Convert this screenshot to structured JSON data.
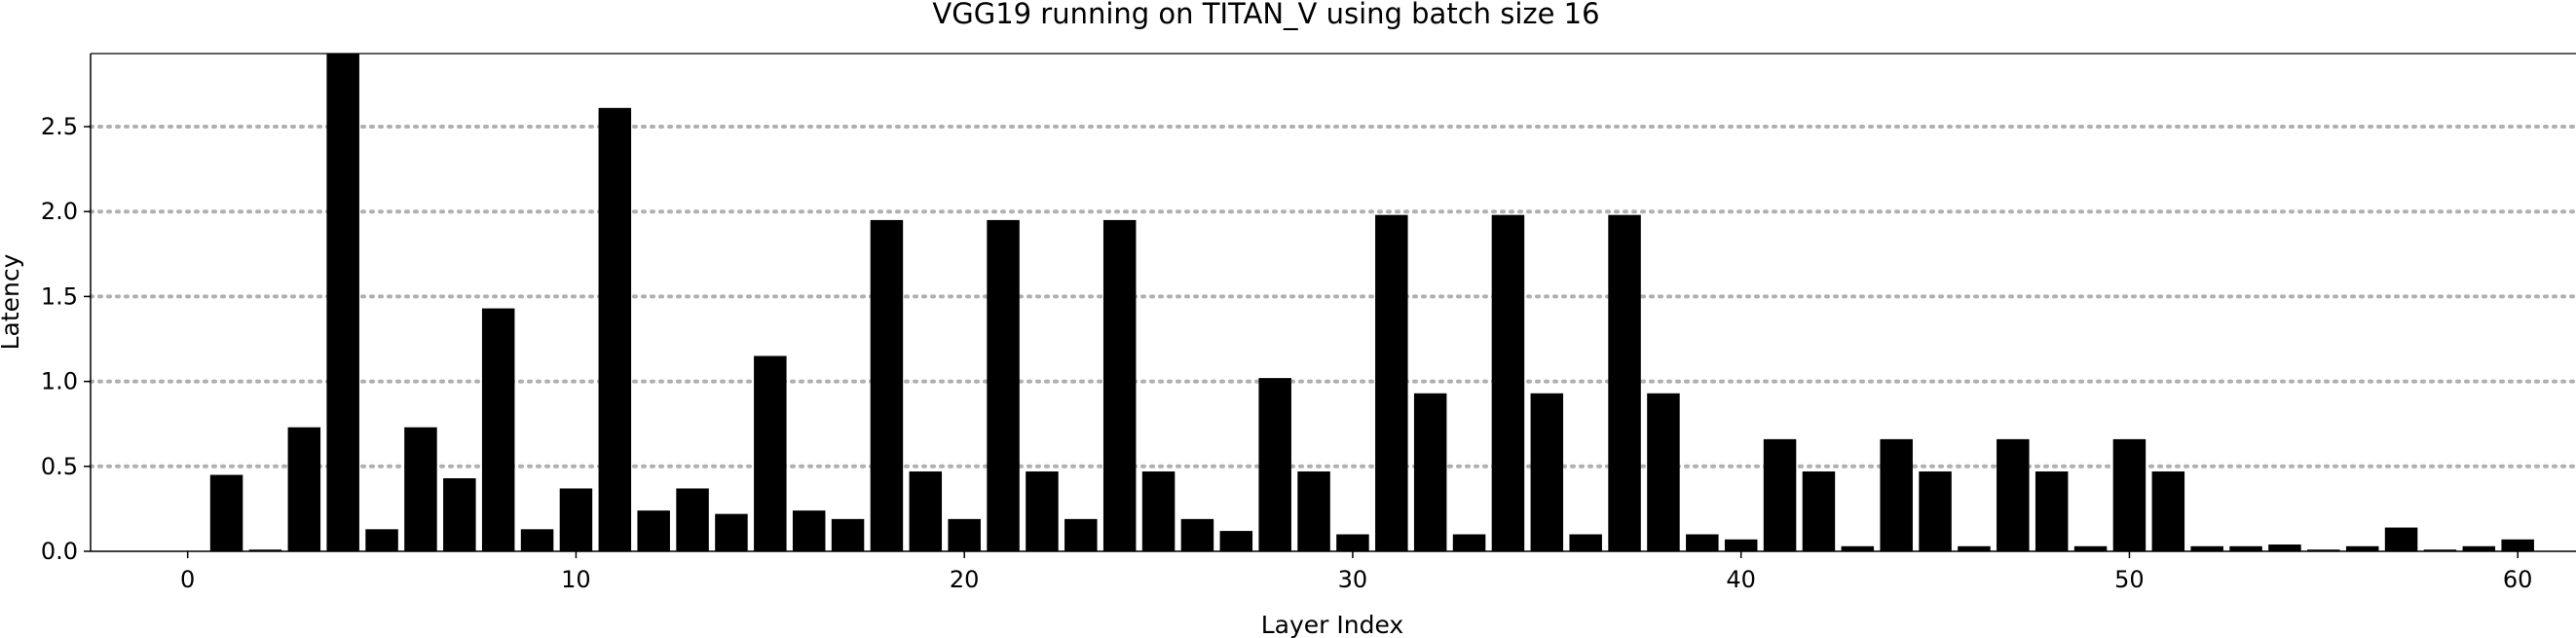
{
  "chart_data": {
    "type": "bar",
    "title": "VGG19 running on TITAN_V using batch size 16",
    "xlabel": "Layer Index",
    "ylabel": "Latency",
    "xlim": [
      -2.5,
      61.5
    ],
    "ylim": [
      0,
      2.93
    ],
    "x_ticks": [
      0,
      10,
      20,
      30,
      40,
      50,
      60
    ],
    "y_ticks": [
      0.0,
      0.5,
      1.0,
      1.5,
      2.0,
      2.5
    ],
    "y_tick_labels": [
      "0.0",
      "0.5",
      "1.0",
      "1.5",
      "2.0",
      "2.5"
    ],
    "grid": "horizontal dotted",
    "bar_color": "#000000",
    "grid_color": "#b0b0b0",
    "x": [
      0,
      1,
      2,
      3,
      4,
      5,
      6,
      7,
      8,
      9,
      10,
      11,
      12,
      13,
      14,
      15,
      16,
      17,
      18,
      19,
      20,
      21,
      22,
      23,
      24,
      25,
      26,
      27,
      28,
      29,
      30,
      31,
      32,
      33,
      34,
      35,
      36,
      37,
      38,
      39,
      40,
      41,
      42,
      43,
      44,
      45,
      46,
      47,
      48,
      49,
      50,
      51,
      52,
      53,
      54,
      55,
      56,
      57,
      58,
      59,
      60
    ],
    "values": [
      0.0,
      0.45,
      0.01,
      0.73,
      2.95,
      0.13,
      0.73,
      0.43,
      1.43,
      0.13,
      0.37,
      2.61,
      0.24,
      0.37,
      0.22,
      1.15,
      0.24,
      0.19,
      1.95,
      0.47,
      0.19,
      1.95,
      0.47,
      0.19,
      1.95,
      0.47,
      0.19,
      0.12,
      1.02,
      0.47,
      0.1,
      1.98,
      0.93,
      0.1,
      1.98,
      0.93,
      0.1,
      1.98,
      0.93,
      0.1,
      0.07,
      0.66,
      0.47,
      0.03,
      0.66,
      0.47,
      0.03,
      0.66,
      0.47,
      0.03,
      0.66,
      0.47,
      0.03,
      0.03,
      0.04,
      0.01,
      0.03,
      0.14,
      0.01,
      0.03,
      0.07
    ]
  }
}
